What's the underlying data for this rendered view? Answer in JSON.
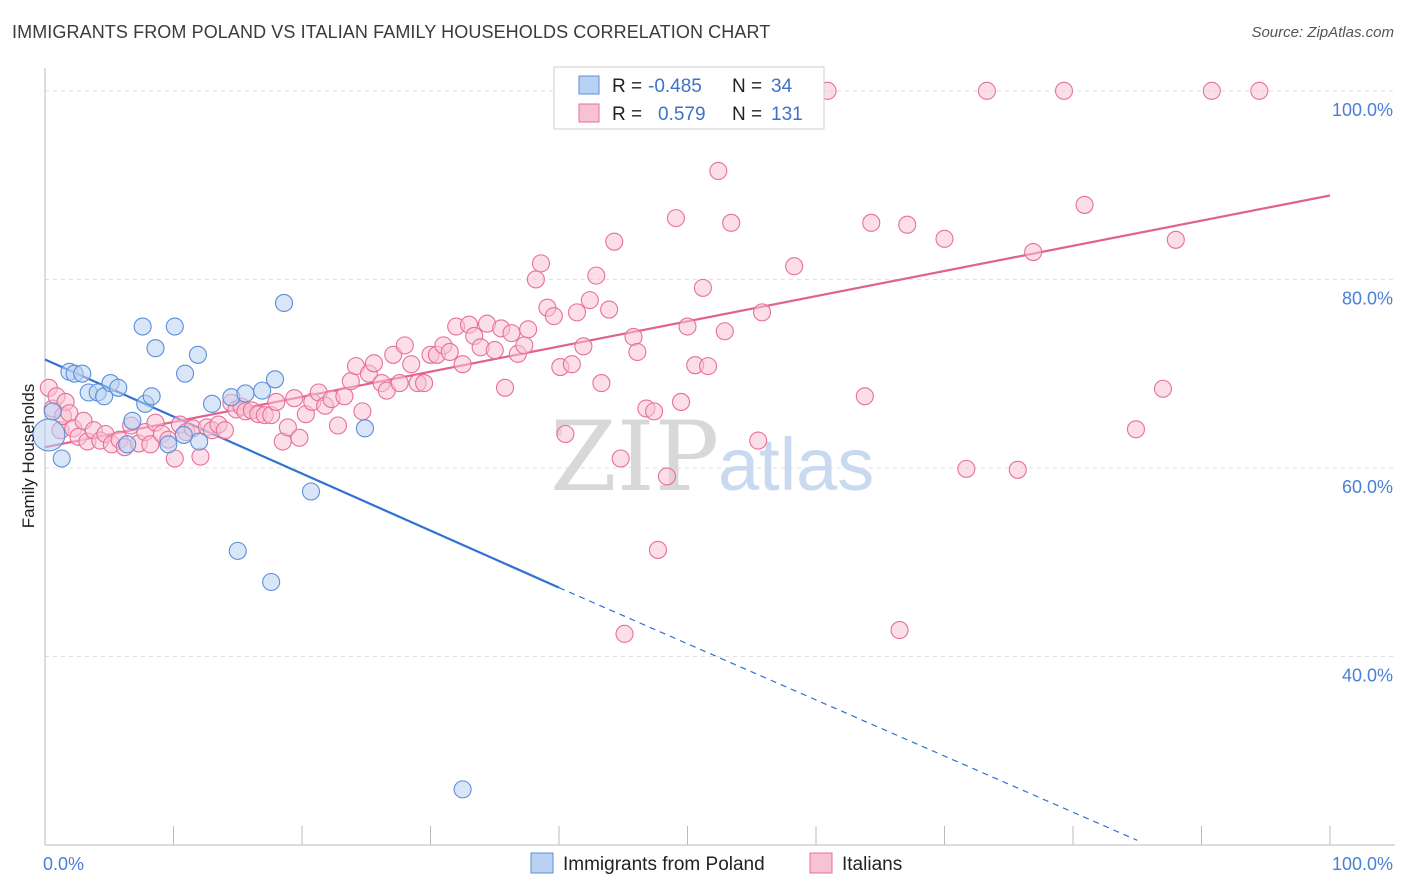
{
  "title": "IMMIGRANTS FROM POLAND VS ITALIAN FAMILY HOUSEHOLDS CORRELATION CHART",
  "source": "Source: ZipAtlas.com",
  "watermark": {
    "zip": "ZIP",
    "atlas": "atlas"
  },
  "colors": {
    "poland": "#5b8fd9",
    "poland_fill": "#b9d1f3",
    "italians": "#e86f99",
    "italians_fill": "#f7c3d4",
    "grid": "#dddddd",
    "tick": "#4a7fd6"
  },
  "chart_data": {
    "type": "scatter",
    "ylabel": "Family Households",
    "xlabel": "",
    "xlim": [
      0,
      100
    ],
    "ylim": [
      20,
      102
    ],
    "x_tick_labels": [
      {
        "value": 0,
        "label": "0.0%"
      },
      {
        "value": 100,
        "label": "100.0%"
      }
    ],
    "y_tick_labels": [
      {
        "value": 40,
        "label": "40.0%"
      },
      {
        "value": 60,
        "label": "60.0%"
      },
      {
        "value": 80,
        "label": "80.0%"
      },
      {
        "value": 100,
        "label": "100.0%"
      }
    ],
    "legend": {
      "placement": "top-center",
      "entries": [
        {
          "r_label": "R =",
          "r": "-0.485",
          "n_label": "N =",
          "n": "34"
        },
        {
          "r_label": "R =",
          "r": "0.579",
          "n_label": "N =",
          "n": "131"
        }
      ]
    },
    "series": [
      {
        "name": "Immigrants from Poland",
        "trend": {
          "x0": 0,
          "y0": 71.5,
          "x1": 40,
          "y1": 47.3,
          "dash_to_x": 85,
          "dash_to_y": 20.5
        },
        "points": [
          [
            0.3,
            63.5
          ],
          [
            0.6,
            66.0
          ],
          [
            1.3,
            61.0
          ],
          [
            1.9,
            70.2
          ],
          [
            2.3,
            70.0
          ],
          [
            2.9,
            70.0
          ],
          [
            3.4,
            68.0
          ],
          [
            4.1,
            68.0
          ],
          [
            4.6,
            67.6
          ],
          [
            5.1,
            69.0
          ],
          [
            5.7,
            68.5
          ],
          [
            6.4,
            62.5
          ],
          [
            6.8,
            65.0
          ],
          [
            7.6,
            75.0
          ],
          [
            7.8,
            66.8
          ],
          [
            8.3,
            67.6
          ],
          [
            8.6,
            72.7
          ],
          [
            9.6,
            62.5
          ],
          [
            10.1,
            75.0
          ],
          [
            10.9,
            70.0
          ],
          [
            11.9,
            72.0
          ],
          [
            12.0,
            62.8
          ],
          [
            13.0,
            66.8
          ],
          [
            14.5,
            67.5
          ],
          [
            15.0,
            51.2
          ],
          [
            15.6,
            67.9
          ],
          [
            16.9,
            68.2
          ],
          [
            17.6,
            47.9
          ],
          [
            17.9,
            69.4
          ],
          [
            18.6,
            77.5
          ],
          [
            20.7,
            57.5
          ],
          [
            24.9,
            64.2
          ],
          [
            32.5,
            25.9
          ],
          [
            10.8,
            63.5
          ]
        ]
      },
      {
        "name": "Italians",
        "trend": {
          "x0": 0,
          "y0": 62.2,
          "x1": 100,
          "y1": 88.9
        },
        "points": [
          [
            0.3,
            68.5
          ],
          [
            0.6,
            66.3
          ],
          [
            0.9,
            67.6
          ],
          [
            1.2,
            64.0
          ],
          [
            1.4,
            65.5
          ],
          [
            1.6,
            67.0
          ],
          [
            1.9,
            65.8
          ],
          [
            2.2,
            64.2
          ],
          [
            2.6,
            63.3
          ],
          [
            3.0,
            65.0
          ],
          [
            3.3,
            62.8
          ],
          [
            3.8,
            64.0
          ],
          [
            4.3,
            62.9
          ],
          [
            4.7,
            63.6
          ],
          [
            5.2,
            62.5
          ],
          [
            5.8,
            63.0
          ],
          [
            6.2,
            62.2
          ],
          [
            6.7,
            64.5
          ],
          [
            7.3,
            62.6
          ],
          [
            7.8,
            63.8
          ],
          [
            8.2,
            62.5
          ],
          [
            8.6,
            64.8
          ],
          [
            9.1,
            63.6
          ],
          [
            9.6,
            63.0
          ],
          [
            10.1,
            61.0
          ],
          [
            10.5,
            64.6
          ],
          [
            11.0,
            63.8
          ],
          [
            11.5,
            64.2
          ],
          [
            12.1,
            61.2
          ],
          [
            12.6,
            64.3
          ],
          [
            13.0,
            64.0
          ],
          [
            13.5,
            64.6
          ],
          [
            14.0,
            64.0
          ],
          [
            14.5,
            66.9
          ],
          [
            14.9,
            66.2
          ],
          [
            15.3,
            66.5
          ],
          [
            15.6,
            66.0
          ],
          [
            16.1,
            66.1
          ],
          [
            16.6,
            65.7
          ],
          [
            17.1,
            65.6
          ],
          [
            17.6,
            65.6
          ],
          [
            18.0,
            67.0
          ],
          [
            18.5,
            62.8
          ],
          [
            18.9,
            64.3
          ],
          [
            19.4,
            67.4
          ],
          [
            19.8,
            63.2
          ],
          [
            20.3,
            65.7
          ],
          [
            20.8,
            67.0
          ],
          [
            21.3,
            68.0
          ],
          [
            21.8,
            66.6
          ],
          [
            22.3,
            67.3
          ],
          [
            22.8,
            64.5
          ],
          [
            23.3,
            67.6
          ],
          [
            23.8,
            69.2
          ],
          [
            24.2,
            70.8
          ],
          [
            24.7,
            66.0
          ],
          [
            25.2,
            70.0
          ],
          [
            25.6,
            71.1
          ],
          [
            26.2,
            69.0
          ],
          [
            26.6,
            68.2
          ],
          [
            27.1,
            72.0
          ],
          [
            27.6,
            69.0
          ],
          [
            28.0,
            73.0
          ],
          [
            28.5,
            71.0
          ],
          [
            29.0,
            69.0
          ],
          [
            29.5,
            69.0
          ],
          [
            30.0,
            72.0
          ],
          [
            30.5,
            72.0
          ],
          [
            31.0,
            73.0
          ],
          [
            31.5,
            72.3
          ],
          [
            32.0,
            75.0
          ],
          [
            32.5,
            71.0
          ],
          [
            33.0,
            75.2
          ],
          [
            33.4,
            74.0
          ],
          [
            33.9,
            72.8
          ],
          [
            34.4,
            75.3
          ],
          [
            35.0,
            72.5
          ],
          [
            35.5,
            74.8
          ],
          [
            35.8,
            68.5
          ],
          [
            36.3,
            74.3
          ],
          [
            36.8,
            72.1
          ],
          [
            37.3,
            73.0
          ],
          [
            37.6,
            74.7
          ],
          [
            38.2,
            80.0
          ],
          [
            38.6,
            81.7
          ],
          [
            39.1,
            77.0
          ],
          [
            39.6,
            76.1
          ],
          [
            40.1,
            70.7
          ],
          [
            40.5,
            63.6
          ],
          [
            41.0,
            71.0
          ],
          [
            41.4,
            76.5
          ],
          [
            41.9,
            72.9
          ],
          [
            42.4,
            77.8
          ],
          [
            42.9,
            80.4
          ],
          [
            43.3,
            69.0
          ],
          [
            43.9,
            76.8
          ],
          [
            44.3,
            84.0
          ],
          [
            44.8,
            61.0
          ],
          [
            45.1,
            42.4
          ],
          [
            45.8,
            73.9
          ],
          [
            46.1,
            72.3
          ],
          [
            46.8,
            66.3
          ],
          [
            47.4,
            66.0
          ],
          [
            47.7,
            51.3
          ],
          [
            48.4,
            59.1
          ],
          [
            49.1,
            86.5
          ],
          [
            49.5,
            67.0
          ],
          [
            50.0,
            75.0
          ],
          [
            50.6,
            70.9
          ],
          [
            51.2,
            79.1
          ],
          [
            51.6,
            70.8
          ],
          [
            52.4,
            91.5
          ],
          [
            52.9,
            74.5
          ],
          [
            53.4,
            86.0
          ],
          [
            55.5,
            62.9
          ],
          [
            55.8,
            76.5
          ],
          [
            58.3,
            81.4
          ],
          [
            60.9,
            100.0
          ],
          [
            63.8,
            67.6
          ],
          [
            64.3,
            86.0
          ],
          [
            66.5,
            42.8
          ],
          [
            67.1,
            85.8
          ],
          [
            70.0,
            84.3
          ],
          [
            71.7,
            59.9
          ],
          [
            75.7,
            59.8
          ],
          [
            76.9,
            82.9
          ],
          [
            80.9,
            87.9
          ],
          [
            84.9,
            64.1
          ],
          [
            87.0,
            68.4
          ],
          [
            88.0,
            84.2
          ],
          [
            73.3,
            100.0
          ],
          [
            79.3,
            100.0
          ],
          [
            90.8,
            100.0
          ],
          [
            94.5,
            100.0
          ]
        ]
      }
    ]
  }
}
